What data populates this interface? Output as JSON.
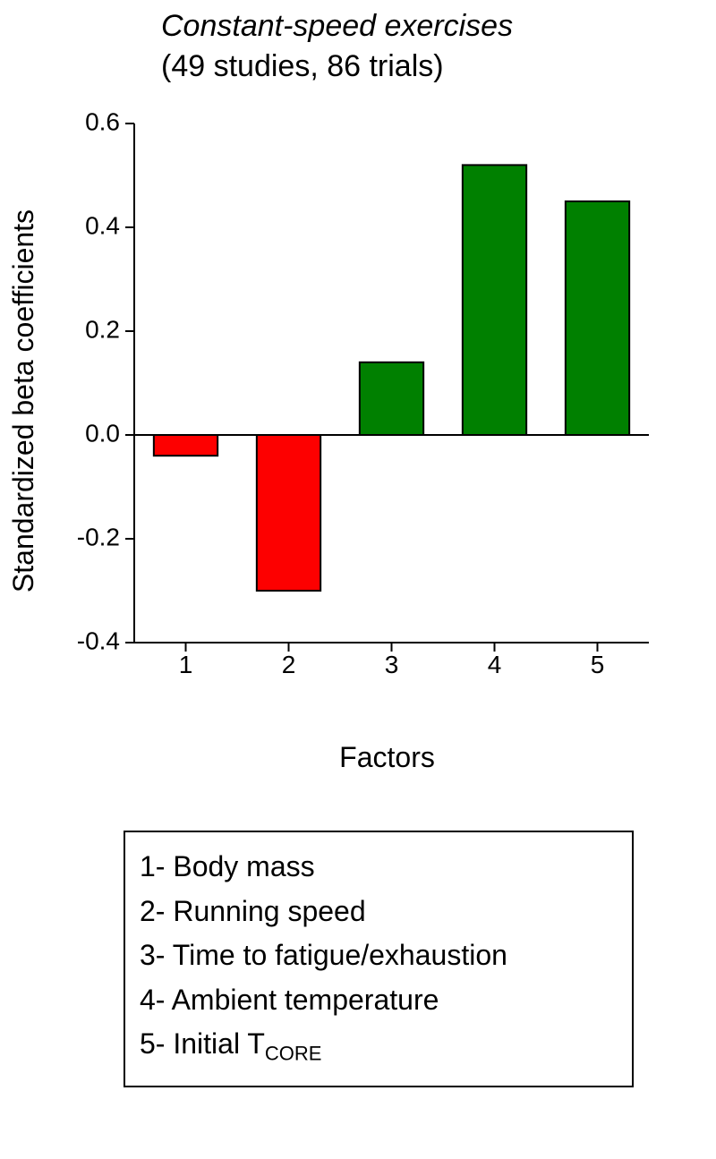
{
  "title": "Constant-speed exercises",
  "subtitle": "(49 studies, 86 trials)",
  "y_axis_label": "Standardized beta coefficients",
  "x_axis_label": "Factors",
  "chart": {
    "type": "bar",
    "categories": [
      "1",
      "2",
      "3",
      "4",
      "5"
    ],
    "values": [
      -0.04,
      -0.3,
      0.14,
      0.52,
      0.45
    ],
    "bar_colors": [
      "#fd0000",
      "#fd0000",
      "#008000",
      "#008000",
      "#008000"
    ],
    "bar_border_color": "#000000",
    "bar_width": 0.62,
    "ylim": [
      -0.4,
      0.6
    ],
    "ytick_step": 0.2,
    "yticks": [
      "-0.4",
      "-0.2",
      "0.0",
      "0.2",
      "0.4",
      "0.6"
    ],
    "background_color": "#ffffff",
    "axis_color": "#000000",
    "tick_font_size": 28,
    "axis_title_font_size": 32,
    "title_font_size": 34
  },
  "legend": {
    "items": [
      {
        "num": "1",
        "label": "Body mass"
      },
      {
        "num": "2",
        "label": "Running speed"
      },
      {
        "num": "3",
        "label": "Time to fatigue/exhaustion"
      },
      {
        "num": "4",
        "label": "Ambient temperature"
      },
      {
        "num": "5",
        "label_prefix": "Initial T",
        "label_sub": "CORE"
      }
    ],
    "border_color": "#000000",
    "font_size": 32
  }
}
